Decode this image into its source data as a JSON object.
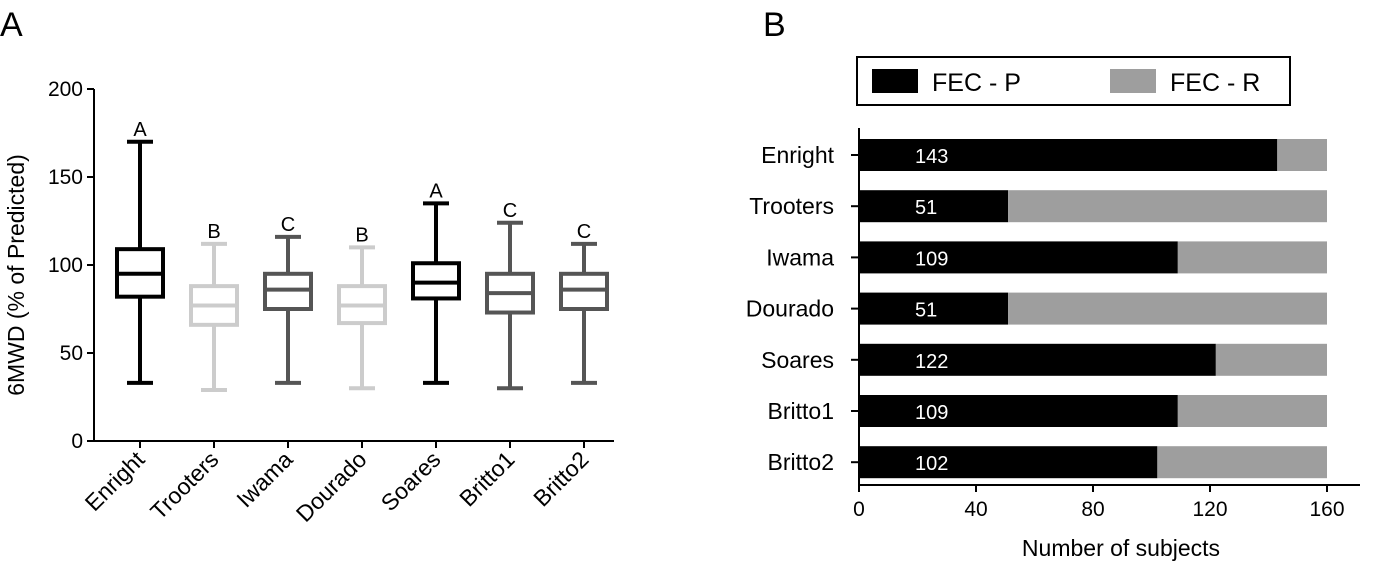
{
  "panels": {
    "a_label": "A",
    "b_label": "B"
  },
  "chart_data": [
    {
      "type": "box",
      "panel": "A",
      "ylabel": "6MWD (% of Predicted)",
      "ylim": [
        0,
        200
      ],
      "yticks": [
        0,
        50,
        100,
        150,
        200
      ],
      "categories": [
        "Enright",
        "Trooters",
        "Iwama",
        "Dourado",
        "Soares",
        "Britto1",
        "Britto2"
      ],
      "boxes": [
        {
          "category": "Enright",
          "min": 33,
          "q1": 82,
          "median": 95,
          "q3": 109,
          "max": 170,
          "group": "A",
          "color": "#000000"
        },
        {
          "category": "Trooters",
          "min": 29,
          "q1": 66,
          "median": 77,
          "q3": 88,
          "max": 112,
          "group": "B",
          "color": "#cccccc"
        },
        {
          "category": "Iwama",
          "min": 33,
          "q1": 75,
          "median": 86,
          "q3": 95,
          "max": 116,
          "group": "C",
          "color": "#555555"
        },
        {
          "category": "Dourado",
          "min": 30,
          "q1": 67,
          "median": 77,
          "q3": 88,
          "max": 110,
          "group": "B",
          "color": "#cccccc"
        },
        {
          "category": "Soares",
          "min": 33,
          "q1": 81,
          "median": 90,
          "q3": 101,
          "max": 135,
          "group": "A",
          "color": "#000000"
        },
        {
          "category": "Britto1",
          "min": 30,
          "q1": 73,
          "median": 84,
          "q3": 95,
          "max": 124,
          "group": "C",
          "color": "#555555"
        },
        {
          "category": "Britto2",
          "min": 33,
          "q1": 75,
          "median": 86,
          "q3": 95,
          "max": 112,
          "group": "C",
          "color": "#555555"
        }
      ]
    },
    {
      "type": "bar",
      "orientation": "horizontal",
      "stacked": true,
      "panel": "B",
      "xlabel": "Number of subjects",
      "xlim": [
        0,
        160
      ],
      "xticks": [
        0,
        40,
        80,
        120,
        160
      ],
      "categories": [
        "Enright",
        "Trooters",
        "Iwama",
        "Dourado",
        "Soares",
        "Britto1",
        "Britto2"
      ],
      "series": [
        {
          "name": "FEC - P",
          "color": "#000000",
          "values": [
            143,
            51,
            109,
            51,
            122,
            109,
            102
          ]
        },
        {
          "name": "FEC - R",
          "color": "#9e9e9e",
          "values": [
            17,
            109,
            51,
            109,
            38,
            51,
            58
          ]
        }
      ],
      "legend": "top"
    }
  ]
}
